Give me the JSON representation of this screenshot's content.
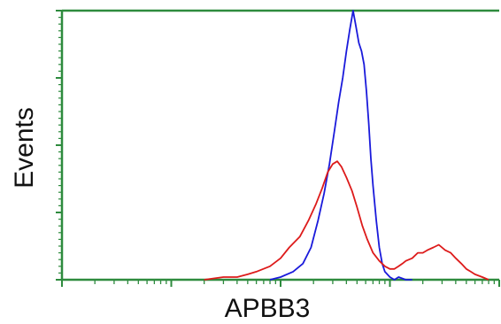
{
  "chart_data": {
    "type": "line",
    "title": "",
    "xlabel": "APBB3",
    "ylabel": "Events",
    "x_scale": "log",
    "xlim": [
      1,
      10000
    ],
    "ylim": [
      0,
      100
    ],
    "grid": false,
    "legend": "none",
    "axis_color": "#2e8b3e",
    "series": [
      {
        "color": "#1a1adb",
        "x": [
          80,
          100,
          130,
          160,
          190,
          220,
          250,
          280,
          310,
          340,
          370,
          400,
          430,
          460,
          490,
          520,
          550,
          580,
          610,
          640,
          670,
          700,
          750,
          800,
          850,
          900,
          1000,
          1100,
          1200,
          1400,
          1600
        ],
        "y": [
          0,
          1,
          3,
          6,
          12,
          22,
          32,
          43,
          55,
          66,
          75,
          85,
          93,
          100,
          94,
          88,
          85,
          80,
          70,
          58,
          45,
          35,
          22,
          12,
          6,
          3,
          1,
          0,
          1,
          0,
          0
        ]
      },
      {
        "color": "#dd1b1b",
        "x": [
          20,
          30,
          40,
          50,
          60,
          80,
          100,
          120,
          150,
          180,
          210,
          240,
          270,
          300,
          330,
          360,
          400,
          450,
          500,
          560,
          620,
          700,
          800,
          900,
          1000,
          1100,
          1200,
          1300,
          1400,
          1600,
          1800,
          2000,
          2200,
          2500,
          2800,
          3200,
          3600,
          4000,
          4500,
          5000,
          5500,
          6000,
          7000,
          8000
        ],
        "y": [
          0,
          1,
          1,
          2,
          3,
          5,
          8,
          12,
          16,
          22,
          28,
          34,
          40,
          43,
          44,
          42,
          38,
          33,
          27,
          20,
          15,
          10,
          7,
          5,
          4,
          4,
          5,
          6,
          7,
          8,
          10,
          10,
          11,
          12,
          13,
          11,
          10,
          8,
          6,
          4,
          3,
          2,
          1,
          0
        ]
      }
    ]
  }
}
